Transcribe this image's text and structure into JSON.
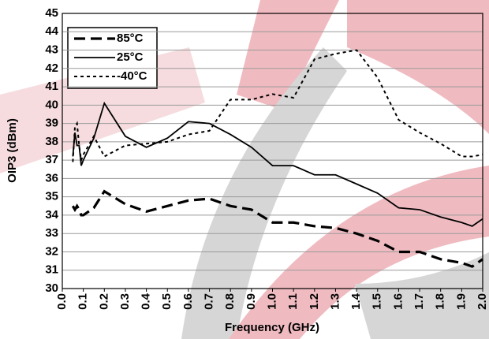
{
  "chart_data": {
    "type": "line",
    "x_label": "Frequency (GHz)",
    "y_label": "OIP3 (dBm)",
    "xlim": [
      0,
      2
    ],
    "ylim": [
      30,
      45
    ],
    "xticks": [
      {
        "value": 0,
        "label": "0.0"
      },
      0.1,
      0.2,
      0.3,
      0.4,
      0.5,
      0.6,
      0.7,
      0.8,
      0.9,
      {
        "value": 1,
        "label": "1.0"
      },
      1.1,
      1.2,
      1.3,
      1.4,
      1.5,
      1.6,
      1.7,
      1.8,
      1.9,
      {
        "value": 2,
        "label": "2.0"
      }
    ],
    "yticks": [
      30,
      31,
      32,
      33,
      34,
      35,
      36,
      37,
      38,
      39,
      40,
      41,
      42,
      43,
      44,
      45
    ],
    "grid": true,
    "legend": "upper left",
    "x": [
      0.05,
      0.06,
      0.07,
      0.08,
      0.09,
      0.1,
      0.15,
      0.2,
      0.3,
      0.4,
      0.5,
      0.6,
      0.7,
      0.8,
      0.9,
      1.0,
      1.1,
      1.2,
      1.3,
      1.4,
      1.5,
      1.6,
      1.7,
      1.8,
      1.9,
      1.95,
      2.0
    ],
    "series": [
      {
        "name": "85°C",
        "color": "#000000",
        "dash": "dashed",
        "values": [
          34.5,
          34.3,
          34.5,
          34.3,
          34.0,
          34.0,
          34.4,
          35.3,
          34.6,
          34.2,
          34.5,
          34.8,
          34.9,
          34.5,
          34.3,
          33.6,
          33.6,
          33.4,
          33.3,
          33.0,
          32.6,
          32.0,
          32.0,
          31.6,
          31.4,
          31.2,
          31.6
        ]
      },
      {
        "name": "25°C",
        "color": "#000000",
        "dash": "solid",
        "values": [
          37.2,
          38.5,
          37.8,
          37.8,
          36.7,
          37.0,
          38.2,
          40.1,
          38.3,
          37.7,
          38.2,
          39.1,
          39.0,
          38.4,
          37.7,
          36.7,
          36.7,
          36.2,
          36.2,
          35.7,
          35.2,
          34.4,
          34.3,
          33.9,
          33.6,
          33.4,
          33.8
        ]
      },
      {
        "name": "-40°C",
        "color": "#000000",
        "dash": "dotted",
        "values": [
          36.9,
          38.8,
          39.0,
          37.8,
          37.0,
          37.3,
          38.3,
          37.2,
          37.8,
          37.9,
          38.0,
          38.4,
          38.6,
          40.3,
          40.3,
          40.6,
          40.4,
          42.5,
          42.8,
          43.0,
          41.5,
          39.2,
          38.5,
          37.9,
          37.2,
          37.2,
          37.3
        ]
      }
    ]
  }
}
